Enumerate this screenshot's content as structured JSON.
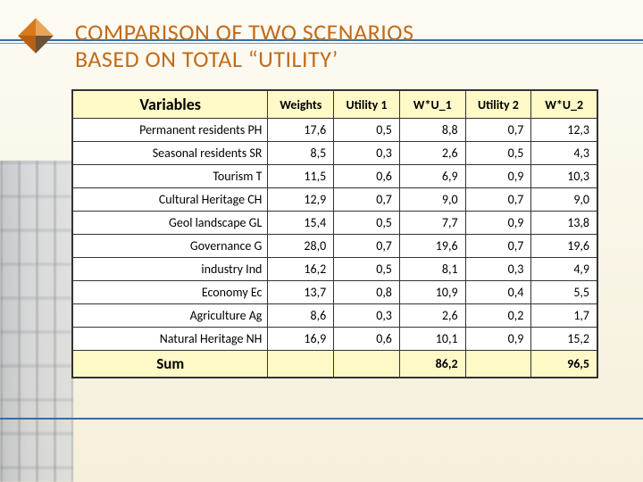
{
  "title_line1": "COMPARISON OF TWO SCENARIOS",
  "title_line2": "BASED ON TOTAL “UTILITY’",
  "table": {
    "columns": [
      "Variables",
      "Weights",
      "Utility 1",
      "W*U_1",
      "Utility 2",
      "W*U_2"
    ],
    "rows": [
      {
        "var": "Permanent residents PH",
        "w": "17,6",
        "u1": "0,5",
        "wu1": "8,8",
        "u2": "0,7",
        "wu2": "12,3"
      },
      {
        "var": "Seasonal residents SR",
        "w": "8,5",
        "u1": "0,3",
        "wu1": "2,6",
        "u2": "0,5",
        "wu2": "4,3"
      },
      {
        "var": "Tourism T",
        "w": "11,5",
        "u1": "0,6",
        "wu1": "6,9",
        "u2": "0,9",
        "wu2": "10,3"
      },
      {
        "var": "Cultural Heritage CH",
        "w": "12,9",
        "u1": "0,7",
        "wu1": "9,0",
        "u2": "0,7",
        "wu2": "9,0"
      },
      {
        "var": "Geol landscape GL",
        "w": "15,4",
        "u1": "0,5",
        "wu1": "7,7",
        "u2": "0,9",
        "wu2": "13,8"
      },
      {
        "var": "Governance G",
        "w": "28,0",
        "u1": "0,7",
        "wu1": "19,6",
        "u2": "0,7",
        "wu2": "19,6"
      },
      {
        "var": "industry Ind",
        "w": "16,2",
        "u1": "0,5",
        "wu1": "8,1",
        "u2": "0,3",
        "wu2": "4,9"
      },
      {
        "var": "Economy Ec",
        "w": "13,7",
        "u1": "0,8",
        "wu1": "10,9",
        "u2": "0,4",
        "wu2": "5,5"
      },
      {
        "var": "Agriculture Ag",
        "w": "8,6",
        "u1": "0,3",
        "wu1": "2,6",
        "u2": "0,2",
        "wu2": "1,7"
      },
      {
        "var": "Natural Heritage NH",
        "w": "16,9",
        "u1": "0,6",
        "wu1": "10,1",
        "u2": "0,9",
        "wu2": "15,2"
      }
    ],
    "sum_label": "Sum",
    "sum_wu1": "86,2",
    "sum_wu2": "96,5"
  },
  "colors": {
    "title": "#c26b1a",
    "rule": "#3a6ca0",
    "header_bg": "#fff9c8",
    "border": "#333333",
    "page_bg_top": "#fdfbf3",
    "page_bg_bottom": "#f5efdb",
    "logo_orange": "#d77a1e",
    "logo_dark": "#6a5238"
  }
}
